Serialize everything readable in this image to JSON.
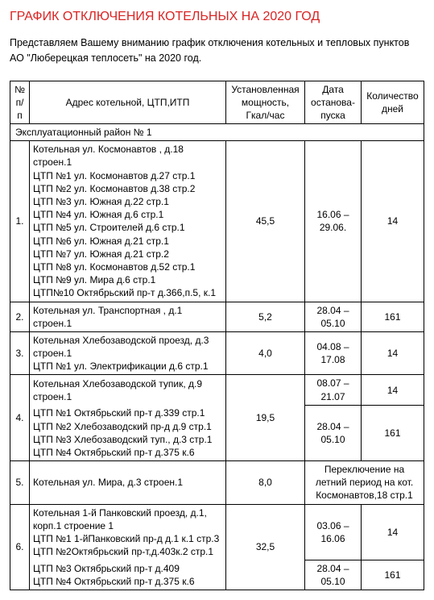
{
  "colors": {
    "title": "#d92424",
    "text": "#000000",
    "border": "#000000",
    "background": "#ffffff"
  },
  "title": "ГРАФИК ОТКЛЮЧЕНИЯ КОТЕЛЬНЫХ НА 2020 ГОД",
  "intro": "Представляем Вашему вниманию график отключения котельных и тепловых пунктов АО \"Люберецкая теплосеть\" на 2020 год.",
  "headers": {
    "num": "№ п/п",
    "addr": "Адрес котельной, ЦТП,ИТП",
    "power": "Установленная мощность, Гкал/час",
    "date": "Дата останова-пуска",
    "days": "Количество дней"
  },
  "district": "Эксплуатационный   район   № 1",
  "rows": {
    "r1": {
      "num": "1.",
      "addr": [
        "Котельная ул. Космонавтов , д.18 строен.1",
        "ЦТП №1   ул. Космонавтов д.27 стр.1",
        "ЦТП №2   ул. Космонавтов д.38 стр.2",
        "ЦТП №3   ул. Южная д.22 стр.1",
        "ЦТП №4   ул. Южная д.6 стр.1",
        "ЦТП №5   ул. Строителей д.6 стр.1",
        "ЦТП №6   ул. Южная д.21 стр.1",
        "ЦТП №7   ул. Южная д.21 стр.2",
        "ЦТП №8   ул. Космонавтов д.52 стр.1",
        "ЦТП №9   ул. Мира д.6 стр.1",
        "ЦТП№10  Октябрьский пр-т д.366,п.5, к.1"
      ],
      "power": "45,5",
      "date": "16.06 – 29.06.",
      "days": "14"
    },
    "r2": {
      "num": "2.",
      "addr": [
        "Котельная ул. Транспортная , д.1 строен.1"
      ],
      "power": "5,2",
      "date": "28.04 – 05.10",
      "days": "161"
    },
    "r3": {
      "num": "3.",
      "addr": [
        "Котельная Хлебозаводской проезд, д.3 строен.1",
        "ЦТП №1 ул. Электрификации д.6 стр.1"
      ],
      "power": "4,0",
      "date": "04.08 – 17.08",
      "days": "14"
    },
    "r4": {
      "num": "4.",
      "addrTop": [
        "Котельная Хлебозаводской тупик, д.9 строен.1"
      ],
      "addrBottom": [
        "ЦТП №1   Октябрьский пр-т д.339 стр.1",
        "ЦТП №2   Хлебозаводский пр-д д.9 стр.1",
        "ЦТП №3   Хлебозаводский туп., д.3 стр.1",
        "ЦТП №4   Октябрьский пр-т д.375 к.6"
      ],
      "power": "19,5",
      "dateTop": "08.07 – 21.07",
      "daysTop": "14",
      "dateBottom": "28.04 – 05.10",
      "daysBottom": "161"
    },
    "r5": {
      "num": "5.",
      "addr": [
        "Котельная ул. Мира, д.3 строен.1"
      ],
      "power": "8,0",
      "note": "Переключение на летний период на кот. Космонавтов,18 стр.1"
    },
    "r6": {
      "num": "6.",
      "addrTop": [
        "Котельная 1-й Панковский проезд, д.1, корп.1 строение 1",
        "ЦТП №1 1-йПанковский пр-д д.1 к.1 стр.3",
        "ЦТП №2Октябрьский пр-т,д.403к.2 стр.1"
      ],
      "addrBottom": [
        "ЦТП №3   Октябрьский пр-т д.409",
        "ЦТП №4   Октябрьский пр-т д.375 к.6"
      ],
      "power": "32,5",
      "dateTop": "03.06 – 16.06",
      "daysTop": "14",
      "dateBottom": "28.04 – 05.10",
      "daysBottom": "161"
    }
  }
}
